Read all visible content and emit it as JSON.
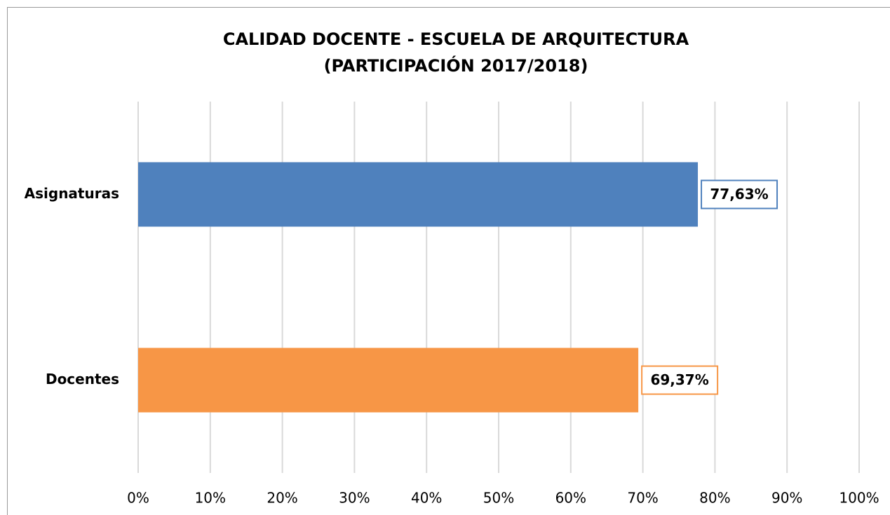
{
  "chart_data": {
    "type": "bar",
    "orientation": "horizontal",
    "title": [
      "CALIDAD DOCENTE - ESCUELA DE ARQUITECTURA",
      "(PARTICIPACIÓN 2017/2018)"
    ],
    "categories": [
      "Asignaturas",
      "Docentes"
    ],
    "values": [
      77.63,
      69.37
    ],
    "value_labels": [
      "77,63%",
      "69,37%"
    ],
    "colors": [
      "#4f81bd",
      "#f79646"
    ],
    "xlim": [
      0,
      100
    ],
    "xticks": [
      {
        "value": 0,
        "label": "0%"
      },
      {
        "value": 10,
        "label": "10%"
      },
      {
        "value": 20,
        "label": "20%"
      },
      {
        "value": 30,
        "label": "30%"
      },
      {
        "value": 40,
        "label": "40%"
      },
      {
        "value": 50,
        "label": "50%"
      },
      {
        "value": 60,
        "label": "60%"
      },
      {
        "value": 70,
        "label": "70%"
      },
      {
        "value": 80,
        "label": "80%"
      },
      {
        "value": 90,
        "label": "90%"
      },
      {
        "value": 100,
        "label": "100%"
      }
    ],
    "grid": true
  }
}
